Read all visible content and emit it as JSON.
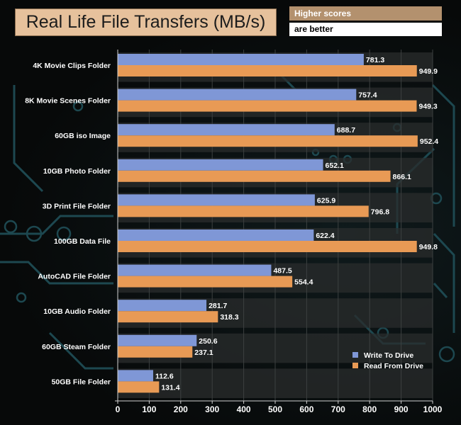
{
  "title": "Real Life File Transfers (MB/s)",
  "hint_line1": "Higher scores",
  "hint_line2": "are better",
  "colors": {
    "write": "#7f97d6",
    "read": "#e89a55",
    "title_bg": "#e6c19c",
    "hint_bg": "#b3916e"
  },
  "chart_data": {
    "type": "bar",
    "orientation": "horizontal",
    "title": "Real Life File Transfers (MB/s)",
    "xlabel": "",
    "ylabel": "",
    "xlim": [
      0,
      1000
    ],
    "xticks": [
      "0",
      "100",
      "200",
      "300",
      "400",
      "500",
      "600",
      "700",
      "800",
      "900",
      "1000"
    ],
    "legend_position": "bottom-right",
    "categories": [
      "4K Movie Clips Folder",
      "8K Movie Scenes Folder",
      "60GB iso Image",
      "10GB Photo Folder",
      "3D Print File Folder",
      "100GB Data File",
      "AutoCAD File Folder",
      "10GB Audio Folder",
      "60GB Steam Folder",
      "50GB File Folder"
    ],
    "series": [
      {
        "name": "Write To  Drive",
        "values": [
          781.3,
          757.4,
          688.7,
          652.1,
          625.9,
          622.4,
          487.5,
          281.7,
          250.6,
          112.6
        ],
        "labels": [
          "781.3",
          "757.4",
          "688.7",
          "652.1",
          "625.9",
          "622.4",
          "487.5",
          "281.7",
          "250.6",
          "112.6"
        ]
      },
      {
        "name": "Read From  Drive",
        "values": [
          949.9,
          949.3,
          952.4,
          866.1,
          796.8,
          949.8,
          554.4,
          318.3,
          237.1,
          131.4
        ],
        "labels": [
          "949.9",
          "949.3",
          "952.4",
          "866.1",
          "796.8",
          "949.8",
          "554.4",
          "318.3",
          "237.1",
          "131.4"
        ]
      }
    ]
  }
}
